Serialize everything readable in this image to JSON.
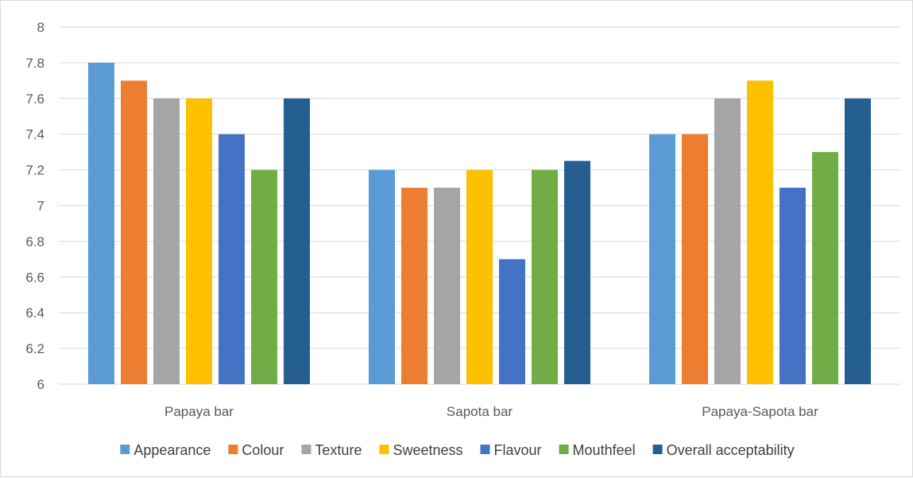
{
  "chart_data": {
    "type": "bar",
    "title": "",
    "xlabel": "",
    "ylabel": "",
    "ylim": [
      6,
      8
    ],
    "yticks": [
      "6",
      "6.2",
      "6.4",
      "6.6",
      "6.8",
      "7",
      "7.2",
      "7.4",
      "7.6",
      "7.8",
      "8"
    ],
    "ytick_values": [
      6,
      6.2,
      6.4,
      6.6,
      6.8,
      7,
      7.2,
      7.4,
      7.6,
      7.8,
      8
    ],
    "grid": true,
    "legend_position": "bottom",
    "categories": [
      "Papaya bar",
      "Sapota bar",
      "Papaya-Sapota  bar"
    ],
    "series": [
      {
        "name": "Appearance",
        "color": "#5b9bd5",
        "values": [
          7.8,
          7.2,
          7.4
        ]
      },
      {
        "name": "Colour",
        "color": "#ed7d31",
        "values": [
          7.7,
          7.1,
          7.4
        ]
      },
      {
        "name": "Texture",
        "color": "#a5a5a5",
        "values": [
          7.6,
          7.1,
          7.6
        ]
      },
      {
        "name": "Sweetness",
        "color": "#ffc000",
        "values": [
          7.6,
          7.2,
          7.7
        ]
      },
      {
        "name": "Flavour",
        "color": "#4472c4",
        "values": [
          7.4,
          6.7,
          7.1
        ]
      },
      {
        "name": "Mouthfeel",
        "color": "#70ad47",
        "values": [
          7.2,
          7.2,
          7.3
        ]
      },
      {
        "name": "Overall acceptability",
        "color": "#255e91",
        "values": [
          7.6,
          7.25,
          7.6
        ]
      }
    ]
  }
}
